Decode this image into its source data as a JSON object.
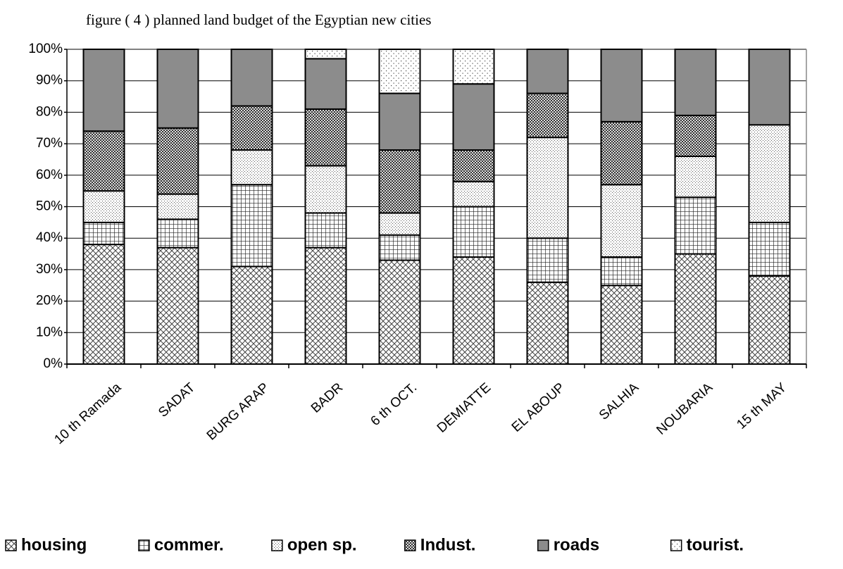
{
  "chart_data": {
    "type": "stacked_bar",
    "title": "figure ( 4 ) planned land budget of the Egyptian new cities",
    "categories": [
      "10 th Ramada",
      "SADAT",
      "BURG ARAP",
      "BADR",
      "6 th OCT.",
      "DEMIATTE",
      "EL ABOUP",
      "SALHIA",
      "NOUBARIA",
      "15 th MAY"
    ],
    "series": [
      {
        "name": "housing",
        "color": "#ffffff",
        "pattern": "crosshatch",
        "values": [
          38,
          37,
          31,
          37,
          33,
          34,
          26,
          25,
          35,
          28
        ]
      },
      {
        "name": "commer.",
        "color": "#ffffff",
        "pattern": "grid",
        "values": [
          7,
          9,
          26,
          11,
          8,
          16,
          14,
          9,
          18,
          17
        ]
      },
      {
        "name": "open sp.",
        "color": "#ffffff",
        "pattern": "dots",
        "values": [
          10,
          8,
          11,
          15,
          7,
          8,
          32,
          23,
          13,
          31
        ]
      },
      {
        "name": "Indust.",
        "color": "#ffffff",
        "pattern": "checker",
        "values": [
          19,
          21,
          14,
          18,
          20,
          10,
          14,
          20,
          13,
          0
        ]
      },
      {
        "name": "roads",
        "color": "#8c8c8c",
        "pattern": "solid",
        "values": [
          26,
          25,
          18,
          16,
          18,
          21,
          14,
          23,
          21,
          24
        ]
      },
      {
        "name": "tourist.",
        "color": "#ffffff",
        "pattern": "sparse",
        "values": [
          0,
          0,
          0,
          3,
          14,
          11,
          0,
          0,
          0,
          0
        ]
      }
    ],
    "ylim": [
      0,
      100
    ],
    "yticks": [
      {
        "value": 0,
        "label": "0%"
      },
      {
        "value": 10,
        "label": "10%"
      },
      {
        "value": 20,
        "label": "20%"
      },
      {
        "value": 30,
        "label": "30%"
      },
      {
        "value": 40,
        "label": "40%"
      },
      {
        "value": 50,
        "label": "50%"
      },
      {
        "value": 60,
        "label": "60%"
      },
      {
        "value": 70,
        "label": "70%"
      },
      {
        "value": 80,
        "label": "80%"
      },
      {
        "value": 90,
        "label": "90%"
      },
      {
        "value": 100,
        "label": "100%"
      }
    ],
    "grid": true,
    "legend": "bottom"
  }
}
